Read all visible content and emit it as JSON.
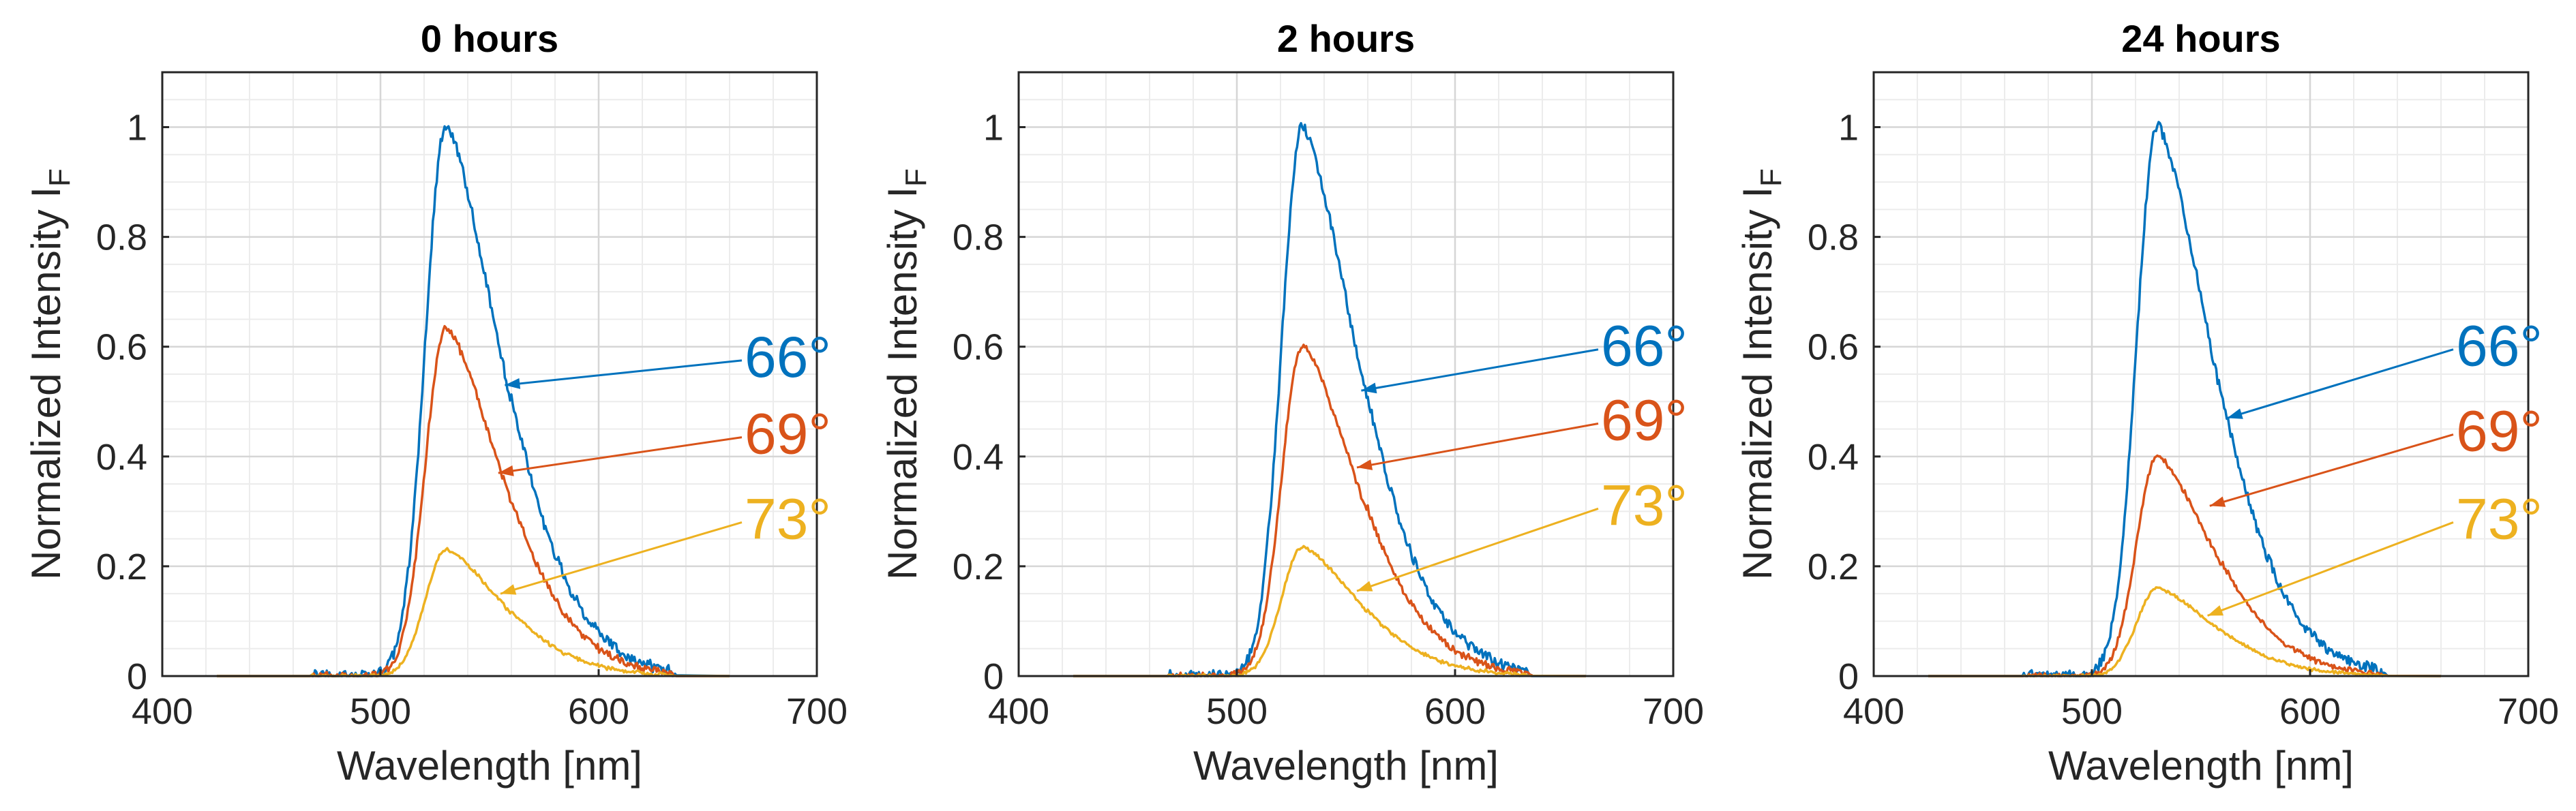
{
  "chart_data": [
    {
      "type": "line",
      "title": "0 hours",
      "xlabel": "Wavelength [nm]",
      "ylabel": "Normalized Intensity I",
      "ylabel_subscript": "F",
      "xlim": [
        400,
        700
      ],
      "ylim": [
        0,
        1.1
      ],
      "xticks": [
        "400",
        "500",
        "600",
        "700"
      ],
      "yticks": [
        "0",
        "0.2",
        "0.4",
        "0.6",
        "0.8",
        "1"
      ],
      "grid": true,
      "series": [
        {
          "name": "66°",
          "color": "#0072BD",
          "peak": 1.0,
          "tail": 0.022,
          "arrow_to": [
            557,
            0.53
          ],
          "label_at": [
            670,
            0.58
          ]
        },
        {
          "name": "69°",
          "color": "#D95319",
          "peak": 0.635,
          "tail": 0.012,
          "arrow_to": [
            554,
            0.37
          ],
          "label_at": [
            670,
            0.44
          ]
        },
        {
          "name": "73°",
          "color": "#EDB120",
          "peak": 0.23,
          "tail": 0.006,
          "arrow_to": [
            555,
            0.15
          ],
          "label_at": [
            670,
            0.285
          ]
        }
      ]
    },
    {
      "type": "line",
      "title": "2 hours",
      "xlabel": "Wavelength [nm]",
      "ylabel": "Normalized Intensity I",
      "ylabel_subscript": "F",
      "xlim": [
        400,
        700
      ],
      "ylim": [
        0,
        1.1
      ],
      "xticks": [
        "400",
        "500",
        "600",
        "700"
      ],
      "yticks": [
        "0",
        "0.2",
        "0.4",
        "0.6",
        "0.8",
        "1"
      ],
      "grid": true,
      "series": [
        {
          "name": "66°",
          "color": "#0072BD",
          "peak": 1.0,
          "tail": 0.02,
          "arrow_to": [
            557,
            0.52
          ],
          "label_at": [
            670,
            0.6
          ]
        },
        {
          "name": "69°",
          "color": "#D95319",
          "peak": 0.6,
          "tail": 0.01,
          "arrow_to": [
            555,
            0.38
          ],
          "label_at": [
            670,
            0.465
          ]
        },
        {
          "name": "73°",
          "color": "#EDB120",
          "peak": 0.235,
          "tail": 0.005,
          "arrow_to": [
            555,
            0.155
          ],
          "label_at": [
            670,
            0.31
          ]
        }
      ]
    },
    {
      "type": "line",
      "title": "24 hours",
      "xlabel": "Wavelength [nm]",
      "ylabel": "Normalized Intensity I",
      "ylabel_subscript": "F",
      "xlim": [
        400,
        700
      ],
      "ylim": [
        0,
        1.1
      ],
      "xticks": [
        "400",
        "500",
        "600",
        "700"
      ],
      "yticks": [
        "0",
        "0.2",
        "0.4",
        "0.6",
        "0.8",
        "1"
      ],
      "grid": true,
      "series": [
        {
          "name": "66°",
          "color": "#0072BD",
          "peak": 1.0,
          "tail": 0.02,
          "arrow_to": [
            562,
            0.47
          ],
          "label_at": [
            670,
            0.6
          ]
        },
        {
          "name": "69°",
          "color": "#D95319",
          "peak": 0.4,
          "tail": 0.01,
          "arrow_to": [
            554,
            0.31
          ],
          "label_at": [
            670,
            0.445
          ]
        },
        {
          "name": "73°",
          "color": "#EDB120",
          "peak": 0.16,
          "tail": 0.004,
          "arrow_to": [
            553,
            0.11
          ],
          "label_at": [
            670,
            0.285
          ]
        }
      ]
    }
  ]
}
